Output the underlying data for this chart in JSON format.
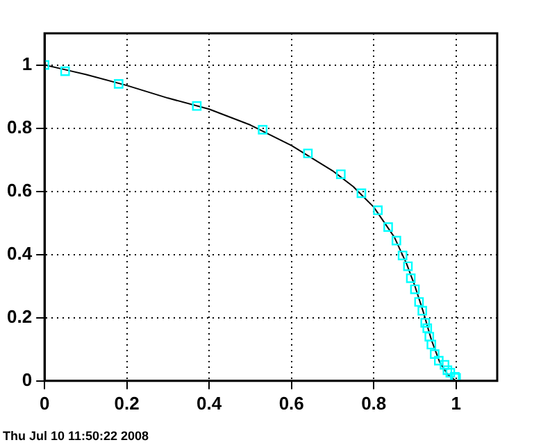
{
  "chart_data": {
    "type": "scatter",
    "xlim": [
      0,
      1.1
    ],
    "ylim": [
      0,
      1.1
    ],
    "xticks": [
      0,
      0.2,
      0.4,
      0.6,
      0.8,
      1
    ],
    "yticks": [
      0,
      0.2,
      0.4,
      0.6,
      0.8,
      1
    ],
    "grid": true,
    "legend": false,
    "annotations": [
      "Thu Jul 10 11:50:22 2008"
    ],
    "series": [
      {
        "type": "line",
        "color": "#000000",
        "marker": "none",
        "line_style": "solid",
        "x": [
          0,
          0.05,
          0.1,
          0.2,
          0.3,
          0.4,
          0.5,
          0.6,
          0.7,
          0.75,
          0.8,
          0.85,
          0.88,
          0.9,
          0.92,
          0.94,
          0.96,
          0.98,
          1
        ],
        "values": [
          1,
          0.985,
          0.97,
          0.935,
          0.895,
          0.86,
          0.81,
          0.745,
          0.665,
          0.615,
          0.55,
          0.455,
          0.37,
          0.3,
          0.22,
          0.13,
          0.06,
          0.02,
          0
        ]
      },
      {
        "color": "#00ffff",
        "marker": "square",
        "x": [
          0,
          0.05,
          0.18,
          0.37,
          0.53,
          0.64,
          0.72,
          0.77,
          0.81,
          0.835,
          0.855,
          0.87,
          0.883,
          0.89,
          0.9,
          0.91,
          0.918,
          0.925,
          0.93,
          0.935,
          0.94,
          0.948,
          0.958,
          0.972,
          0.979,
          0.986,
          0.997,
          1
        ],
        "values": [
          1,
          0.98,
          0.94,
          0.87,
          0.795,
          0.72,
          0.654,
          0.594,
          0.54,
          0.487,
          0.444,
          0.397,
          0.363,
          0.325,
          0.29,
          0.25,
          0.222,
          0.184,
          0.167,
          0.14,
          0.115,
          0.085,
          0.064,
          0.051,
          0.034,
          0.026,
          0.013,
          0.01
        ]
      }
    ]
  }
}
